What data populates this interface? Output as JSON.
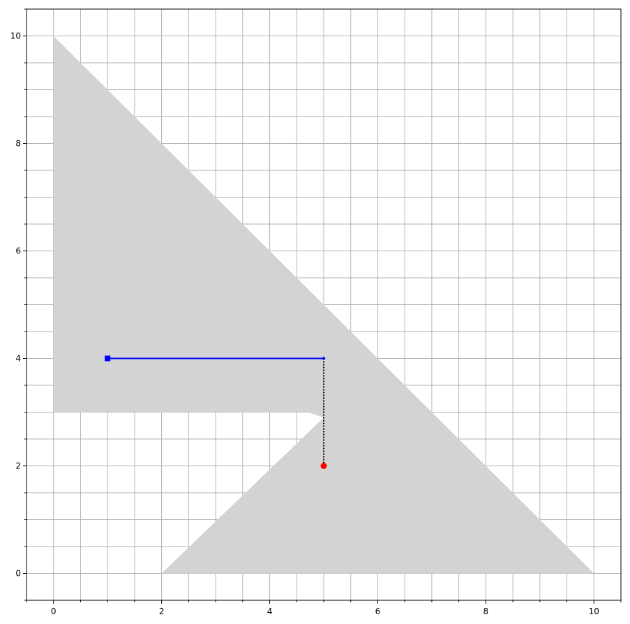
{
  "chart_data": {
    "type": "line",
    "title": "",
    "xlabel": "",
    "ylabel": "",
    "xlim": [
      -0.5,
      10.5
    ],
    "ylim": [
      -0.5,
      10.5
    ],
    "major_ticks": [
      0,
      2,
      4,
      6,
      8,
      10
    ],
    "x_tick_labels": [
      "0",
      "2",
      "4",
      "6",
      "8",
      "10"
    ],
    "y_tick_labels": [
      "0",
      "2",
      "4",
      "6",
      "8",
      "10"
    ],
    "minor_tick_step": 0.5,
    "grid": true,
    "shaded_region": {
      "color": "#d3d3d3",
      "polygons": [
        [
          [
            0,
            10
          ],
          [
            0,
            3
          ],
          [
            4.7,
            3
          ],
          [
            5,
            2.9
          ],
          [
            2,
            0
          ],
          [
            10,
            0
          ]
        ]
      ]
    },
    "series": [
      {
        "style": "solid",
        "color": "#0000ff",
        "points": [
          [
            1,
            4
          ],
          [
            5,
            4
          ]
        ],
        "start_marker": "square",
        "end_marker": "small-dot"
      },
      {
        "style": "dotted",
        "color": "#000000",
        "points": [
          [
            5,
            4
          ],
          [
            5,
            2
          ]
        ]
      }
    ],
    "markers": [
      {
        "x": 5,
        "y": 2,
        "shape": "circle",
        "color": "#ff0000"
      }
    ]
  }
}
